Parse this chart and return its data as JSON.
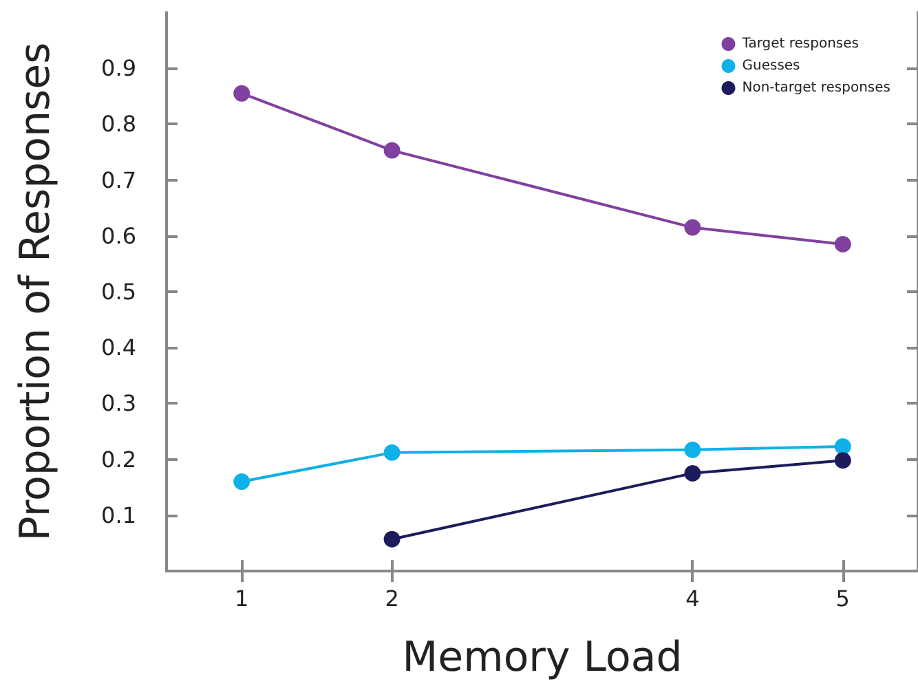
{
  "chart_data": {
    "type": "line",
    "xlabel": "Memory Load",
    "ylabel": "Proportion of Responses",
    "x": [
      1,
      2,
      4,
      5
    ],
    "series": [
      {
        "name": "Target responses",
        "color": "#8040a0",
        "values": [
          0.855,
          0.753,
          0.615,
          0.585
        ]
      },
      {
        "name": "Guesses",
        "color": "#10b0e8",
        "values": [
          0.16,
          0.212,
          0.217,
          0.223
        ]
      },
      {
        "name": "Non-target responses",
        "color": "#1c1c5c",
        "values": [
          null,
          0.057,
          0.175,
          0.198
        ]
      }
    ],
    "xlim": [
      0.5,
      5.5
    ],
    "xticks": [
      1,
      2,
      4,
      5
    ],
    "ylim": [
      0,
      1
    ],
    "yticks": [
      0.1,
      0.2,
      0.3,
      0.4,
      0.5,
      0.6,
      0.7,
      0.8,
      0.9
    ],
    "grid": false,
    "legend": "top right",
    "marker": "circle",
    "line_style": "solid"
  }
}
